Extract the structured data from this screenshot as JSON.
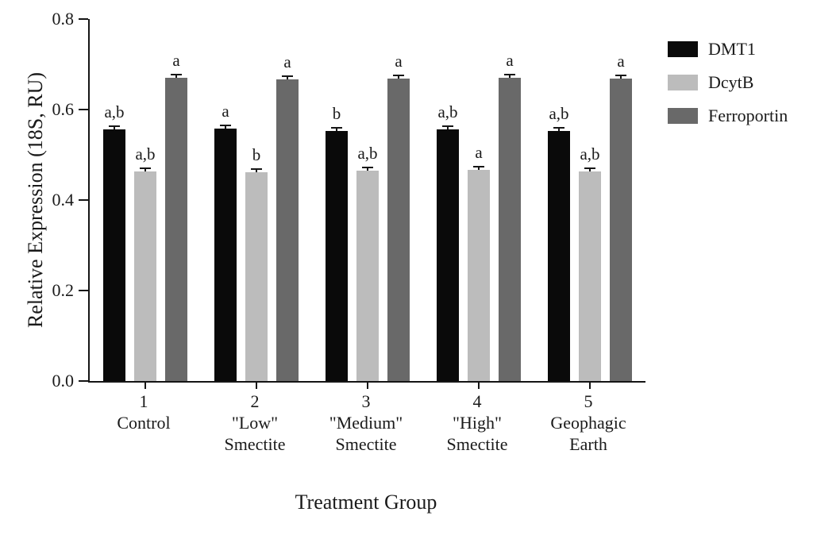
{
  "chart_data": {
    "type": "bar",
    "title": "",
    "xlabel": "Treatment Group",
    "ylabel": "Relative Expression (18S, RU)",
    "ylim": [
      0,
      0.8
    ],
    "yticks": [
      0,
      0.2,
      0.4,
      0.6,
      0.8
    ],
    "ytick_labels": [
      "0.0",
      "0.2",
      "0.4",
      "0.6",
      "0.8"
    ],
    "grid": false,
    "legend_position": "right-top",
    "categories": [
      [
        "1",
        "Control"
      ],
      [
        "2",
        "\"Low\"",
        "Smectite"
      ],
      [
        "3",
        "\"Medium\"",
        "Smectite"
      ],
      [
        "4",
        "\"High\"",
        "Smectite"
      ],
      [
        "5",
        "Geophagic",
        "Earth"
      ]
    ],
    "series": [
      {
        "name": "DMT1",
        "color": "#0a0a0a",
        "values": [
          0.556,
          0.558,
          0.552,
          0.556,
          0.553
        ],
        "errors": [
          0.004,
          0.004,
          0.004,
          0.004,
          0.004
        ],
        "sig_labels": [
          "a,b",
          "a",
          "b",
          "a,b",
          "a,b"
        ]
      },
      {
        "name": "DcytB",
        "color": "#bcbcbc",
        "values": [
          0.463,
          0.462,
          0.465,
          0.467,
          0.463
        ],
        "errors": [
          0.004,
          0.004,
          0.004,
          0.004,
          0.004
        ],
        "sig_labels": [
          "a,b",
          "b",
          "a,b",
          "a",
          "a,b"
        ]
      },
      {
        "name": "Ferroportin",
        "color": "#696969",
        "values": [
          0.67,
          0.667,
          0.668,
          0.67,
          0.669
        ],
        "errors": [
          0.004,
          0.004,
          0.004,
          0.004,
          0.004
        ],
        "sig_labels": [
          "a",
          "a",
          "a",
          "a",
          "a"
        ]
      }
    ]
  }
}
